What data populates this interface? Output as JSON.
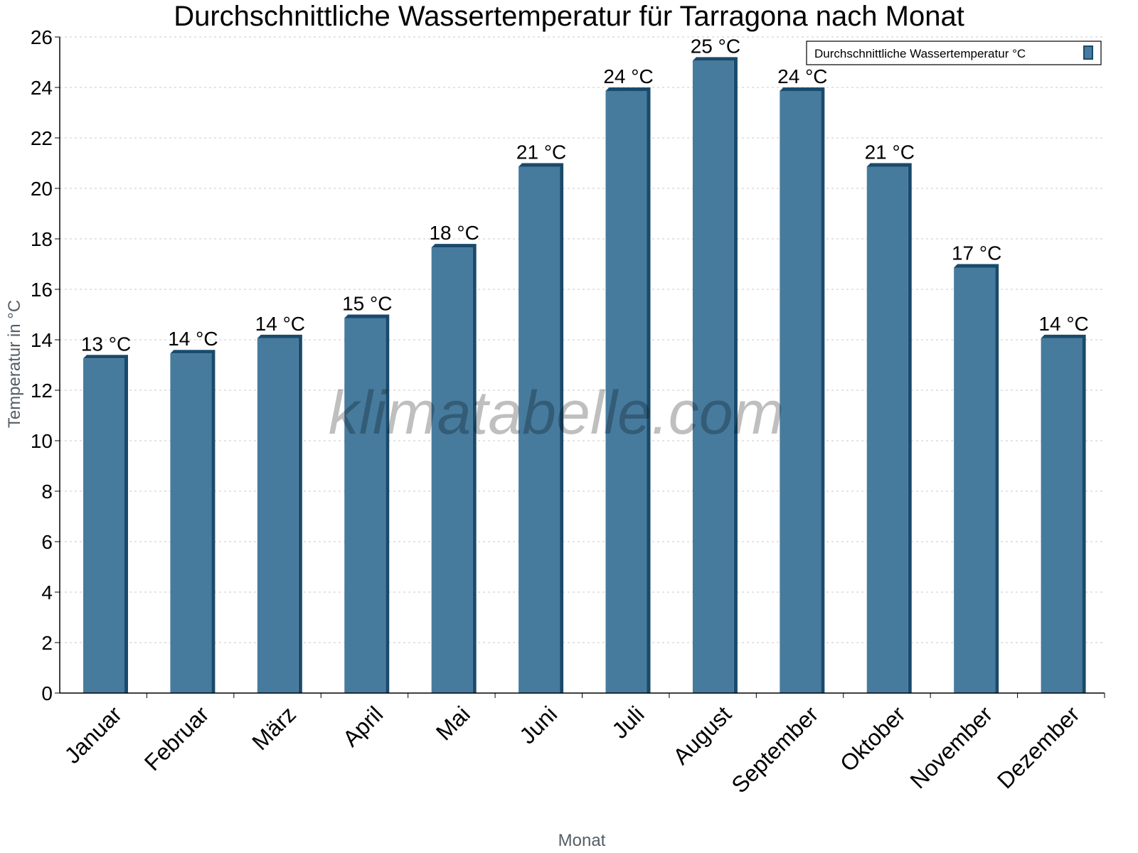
{
  "chart_data": {
    "type": "bar",
    "title": "Durchschnittliche Wassertemperatur für Tarragona nach Monat",
    "xlabel": "Monat",
    "ylabel": "Temperatur in °C",
    "ylim": [
      0,
      26
    ],
    "yticks": [
      0,
      2,
      4,
      6,
      8,
      10,
      12,
      14,
      16,
      18,
      20,
      22,
      24,
      26
    ],
    "grid": true,
    "legend_position": "top-right",
    "categories": [
      "Januar",
      "Februar",
      "März",
      "April",
      "Mai",
      "Juni",
      "Juli",
      "August",
      "September",
      "Oktober",
      "November",
      "Dezember"
    ],
    "series": [
      {
        "name": "Durchschnittliche Wassertemperatur °C",
        "values": [
          13.4,
          13.6,
          14.2,
          15.0,
          17.8,
          21.0,
          24.0,
          25.2,
          24.0,
          21.0,
          17.0,
          14.2
        ],
        "data_labels": [
          "13 °C",
          "14 °C",
          "14 °C",
          "15 °C",
          "18 °C",
          "21 °C",
          "24 °C",
          "25 °C",
          "24 °C",
          "21 °C",
          "17 °C",
          "14 °C"
        ],
        "color": "#467b9e",
        "edge_color": "#1a4a6b"
      }
    ],
    "watermark": "klimatabelle.com"
  }
}
